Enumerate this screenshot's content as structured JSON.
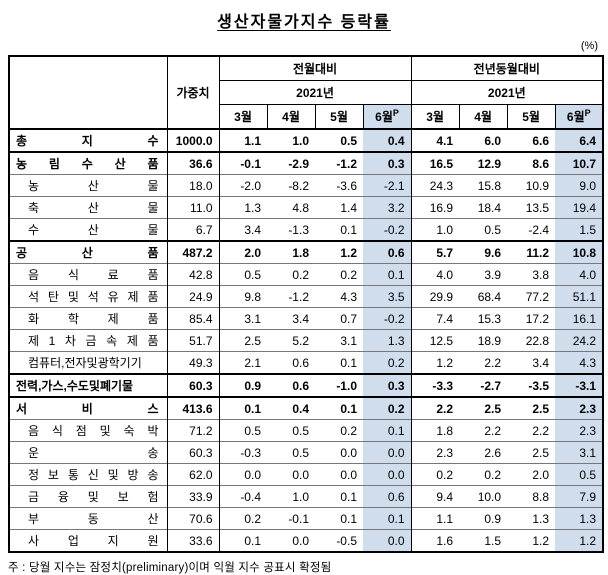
{
  "page": {
    "title": "생산자물가지수 등락률",
    "unit_label": "(%)",
    "footnote": "주 : 당월 지수는 잠정치(preliminary)이며 익월 지수 공표시 확정됨"
  },
  "colors": {
    "highlight": "#cfdded"
  },
  "table": {
    "header": {
      "weight": "가중치",
      "mom_group": "전월대비",
      "yoy_group": "전년동월대비",
      "year": "2021년",
      "months": [
        {
          "label": "3월"
        },
        {
          "label": "4월"
        },
        {
          "label": "5월"
        },
        {
          "label": "6월",
          "sup": "P"
        }
      ]
    },
    "rows": [
      {
        "label": "총 지 수",
        "section": true,
        "indent": false,
        "weight": "1000.0",
        "mom": [
          "1.1",
          "1.0",
          "0.5",
          "0.4"
        ],
        "yoy": [
          "4.1",
          "6.0",
          "6.6",
          "6.4"
        ]
      },
      {
        "label": "농 림 수 산 품",
        "section": true,
        "indent": false,
        "weight": "36.6",
        "mom": [
          "-0.1",
          "-2.9",
          "-1.2",
          "0.3"
        ],
        "yoy": [
          "16.5",
          "12.9",
          "8.6",
          "10.7"
        ]
      },
      {
        "label": "농 산 물",
        "section": false,
        "indent": true,
        "weight": "18.0",
        "mom": [
          "-2.0",
          "-8.2",
          "-3.6",
          "-2.1"
        ],
        "yoy": [
          "24.3",
          "15.8",
          "10.9",
          "9.0"
        ]
      },
      {
        "label": "축 산 물",
        "section": false,
        "indent": true,
        "weight": "11.0",
        "mom": [
          "1.3",
          "4.8",
          "1.4",
          "3.2"
        ],
        "yoy": [
          "16.9",
          "18.4",
          "13.5",
          "19.4"
        ]
      },
      {
        "label": "수 산 물",
        "section": false,
        "indent": true,
        "weight": "6.7",
        "mom": [
          "3.4",
          "-1.3",
          "0.1",
          "-0.2"
        ],
        "yoy": [
          "1.0",
          "0.5",
          "-2.4",
          "1.5"
        ]
      },
      {
        "label": "공 산 품",
        "section": true,
        "indent": false,
        "weight": "487.2",
        "mom": [
          "2.0",
          "1.8",
          "1.2",
          "0.6"
        ],
        "yoy": [
          "5.7",
          "9.6",
          "11.2",
          "10.8"
        ]
      },
      {
        "label": "음 식 료 품",
        "section": false,
        "indent": true,
        "weight": "42.8",
        "mom": [
          "0.5",
          "0.2",
          "0.2",
          "0.1"
        ],
        "yoy": [
          "4.0",
          "3.9",
          "3.8",
          "4.0"
        ]
      },
      {
        "label": "석 탄 및 석 유 제 품",
        "section": false,
        "indent": true,
        "weight": "24.9",
        "mom": [
          "9.8",
          "-1.2",
          "4.3",
          "3.5"
        ],
        "yoy": [
          "29.9",
          "68.4",
          "77.2",
          "51.1"
        ]
      },
      {
        "label": "화 학 제 품",
        "section": false,
        "indent": true,
        "weight": "85.4",
        "mom": [
          "3.1",
          "3.4",
          "0.7",
          "-0.2"
        ],
        "yoy": [
          "7.4",
          "15.3",
          "17.2",
          "16.1"
        ]
      },
      {
        "label": "제 1 차 금 속 제 품",
        "section": false,
        "indent": true,
        "weight": "51.7",
        "mom": [
          "2.5",
          "5.2",
          "3.1",
          "1.3"
        ],
        "yoy": [
          "12.5",
          "18.9",
          "22.8",
          "24.2"
        ]
      },
      {
        "label": "컴퓨터,전자및광학기기",
        "section": false,
        "indent": true,
        "weight": "49.3",
        "mom": [
          "2.1",
          "0.6",
          "0.1",
          "0.2"
        ],
        "yoy": [
          "1.2",
          "2.2",
          "3.4",
          "4.3"
        ]
      },
      {
        "label": "전력,가스,수도및폐기물",
        "section": true,
        "indent": false,
        "weight": "60.3",
        "mom": [
          "0.9",
          "0.6",
          "-1.0",
          "0.3"
        ],
        "yoy": [
          "-3.3",
          "-2.7",
          "-3.5",
          "-3.1"
        ]
      },
      {
        "label": "서 비 스",
        "section": true,
        "indent": false,
        "weight": "413.6",
        "mom": [
          "0.1",
          "0.4",
          "0.1",
          "0.2"
        ],
        "yoy": [
          "2.2",
          "2.5",
          "2.5",
          "2.3"
        ]
      },
      {
        "label": "음 식 점 및 숙 박",
        "section": false,
        "indent": true,
        "weight": "71.2",
        "mom": [
          "0.5",
          "0.5",
          "0.2",
          "0.1"
        ],
        "yoy": [
          "1.8",
          "2.2",
          "2.2",
          "2.3"
        ]
      },
      {
        "label": "운 송",
        "section": false,
        "indent": true,
        "weight": "60.3",
        "mom": [
          "-0.3",
          "0.5",
          "0.0",
          "0.0"
        ],
        "yoy": [
          "2.3",
          "2.6",
          "2.5",
          "3.1"
        ]
      },
      {
        "label": "정 보 통 신 및 방 송",
        "section": false,
        "indent": true,
        "weight": "62.0",
        "mom": [
          "0.0",
          "0.0",
          "0.0",
          "0.0"
        ],
        "yoy": [
          "0.2",
          "0.2",
          "2.0",
          "0.5"
        ]
      },
      {
        "label": "금 융 및 보 험",
        "section": false,
        "indent": true,
        "weight": "33.9",
        "mom": [
          "-0.4",
          "1.0",
          "0.1",
          "0.6"
        ],
        "yoy": [
          "9.4",
          "10.0",
          "8.8",
          "7.9"
        ]
      },
      {
        "label": "부 동 산",
        "section": false,
        "indent": true,
        "weight": "70.6",
        "mom": [
          "0.2",
          "-0.1",
          "0.1",
          "0.1"
        ],
        "yoy": [
          "1.1",
          "0.9",
          "1.3",
          "1.3"
        ]
      },
      {
        "label": "사 업 지 원",
        "section": false,
        "indent": true,
        "weight": "33.6",
        "mom": [
          "0.1",
          "0.0",
          "-0.5",
          "0.0"
        ],
        "yoy": [
          "1.6",
          "1.5",
          "1.2",
          "1.2"
        ]
      }
    ]
  }
}
